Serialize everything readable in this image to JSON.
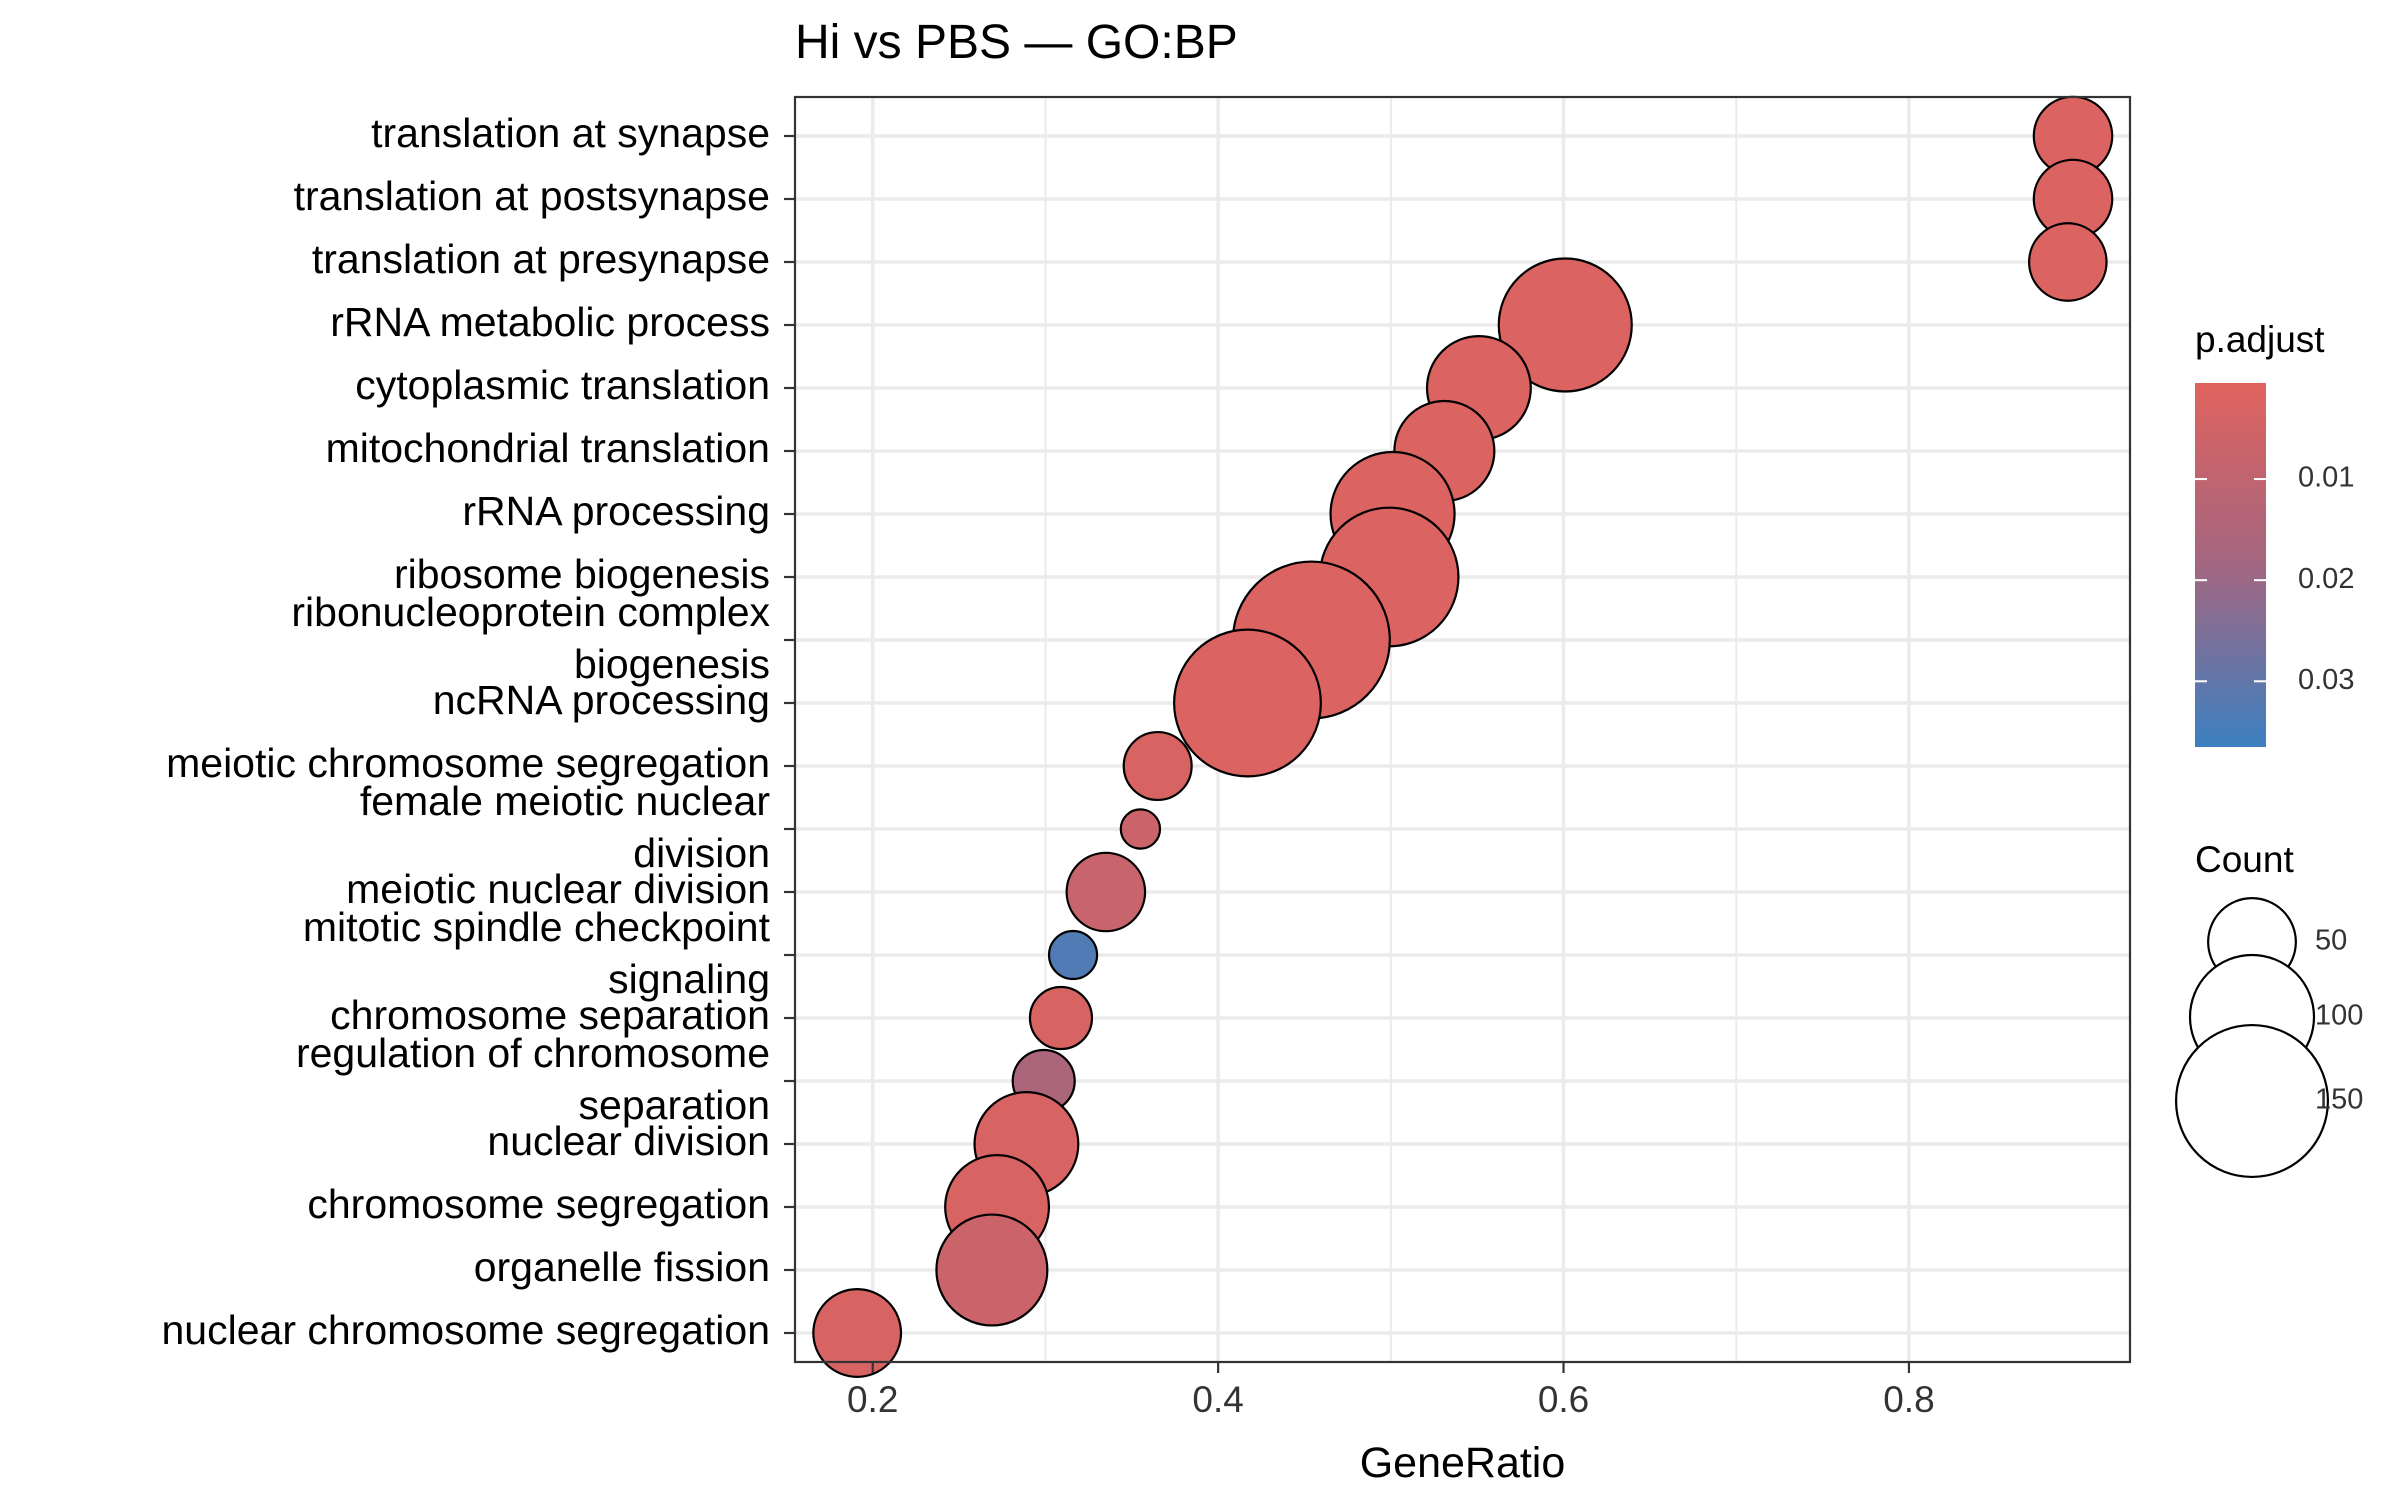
{
  "chart_data": {
    "type": "scatter",
    "title": "Hi vs PBS — GO:BP",
    "xlabel": "GeneRatio",
    "ylabel": "",
    "xlim": [
      0.155,
      0.928
    ],
    "xticks": [
      0.2,
      0.4,
      0.6,
      0.8
    ],
    "xtick_labels": [
      "0.2",
      "0.4",
      "0.6",
      "0.8"
    ],
    "grid": true,
    "legend_position": "right",
    "points": [
      {
        "label": [
          "translation at synapse"
        ],
        "x": 0.895,
        "count": 40,
        "padj": 0.002
      },
      {
        "label": [
          "translation at postsynapse"
        ],
        "x": 0.895,
        "count": 40,
        "padj": 0.002
      },
      {
        "label": [
          "translation at presynapse"
        ],
        "x": 0.892,
        "count": 39,
        "padj": 0.002
      },
      {
        "label": [
          "rRNA metabolic process"
        ],
        "x": 0.601,
        "count": 115,
        "padj": 0.002
      },
      {
        "label": [
          "cytoplasmic translation"
        ],
        "x": 0.551,
        "count": 70,
        "padj": 0.002
      },
      {
        "label": [
          "mitochondrial translation"
        ],
        "x": 0.531,
        "count": 65,
        "padj": 0.002
      },
      {
        "label": [
          "rRNA processing"
        ],
        "x": 0.501,
        "count": 100,
        "padj": 0.002
      },
      {
        "label": [
          "ribosome biogenesis"
        ],
        "x": 0.499,
        "count": 125,
        "padj": 0.002
      },
      {
        "label": [
          "ribonucleoprotein complex",
          "biogenesis"
        ],
        "x": 0.454,
        "count": 160,
        "padj": 0.002
      },
      {
        "label": [
          "ncRNA processing"
        ],
        "x": 0.417,
        "count": 140,
        "padj": 0.002
      },
      {
        "label": [
          "meiotic chromosome segregation"
        ],
        "x": 0.365,
        "count": 30,
        "padj": 0.003
      },
      {
        "label": [
          "female meiotic nuclear",
          "division"
        ],
        "x": 0.355,
        "count": 10,
        "padj": 0.007
      },
      {
        "label": [
          "meiotic nuclear division"
        ],
        "x": 0.335,
        "count": 40,
        "padj": 0.008
      },
      {
        "label": [
          "mitotic spindle checkpoint",
          "signaling"
        ],
        "x": 0.316,
        "count": 15,
        "padj": 0.033
      },
      {
        "label": [
          "chromosome separation"
        ],
        "x": 0.309,
        "count": 25,
        "padj": 0.003
      },
      {
        "label": [
          "regulation of chromosome",
          "separation"
        ],
        "x": 0.299,
        "count": 25,
        "padj": 0.016
      },
      {
        "label": [
          "nuclear division"
        ],
        "x": 0.289,
        "count": 70,
        "padj": 0.003
      },
      {
        "label": [
          "chromosome segregation"
        ],
        "x": 0.272,
        "count": 70,
        "padj": 0.003
      },
      {
        "label": [
          "organelle fission"
        ],
        "x": 0.269,
        "count": 80,
        "padj": 0.007
      },
      {
        "label": [
          "nuclear chromosome segregation"
        ],
        "x": 0.191,
        "count": 50,
        "padj": 0.003
      }
    ],
    "color_legend": {
      "title": "p.adjust",
      "range": [
        0.0005,
        0.0365
      ],
      "ticks": [
        0.01,
        0.02,
        0.03
      ],
      "tick_labels": [
        "0.01",
        "0.02",
        "0.03"
      ],
      "low_color": "#E0635E",
      "mid_color": "#A36680",
      "high_color": "#3C80C1"
    },
    "size_legend": {
      "title": "Count",
      "values": [
        50,
        100,
        150
      ],
      "labels": [
        "50",
        "100",
        "150"
      ]
    }
  }
}
